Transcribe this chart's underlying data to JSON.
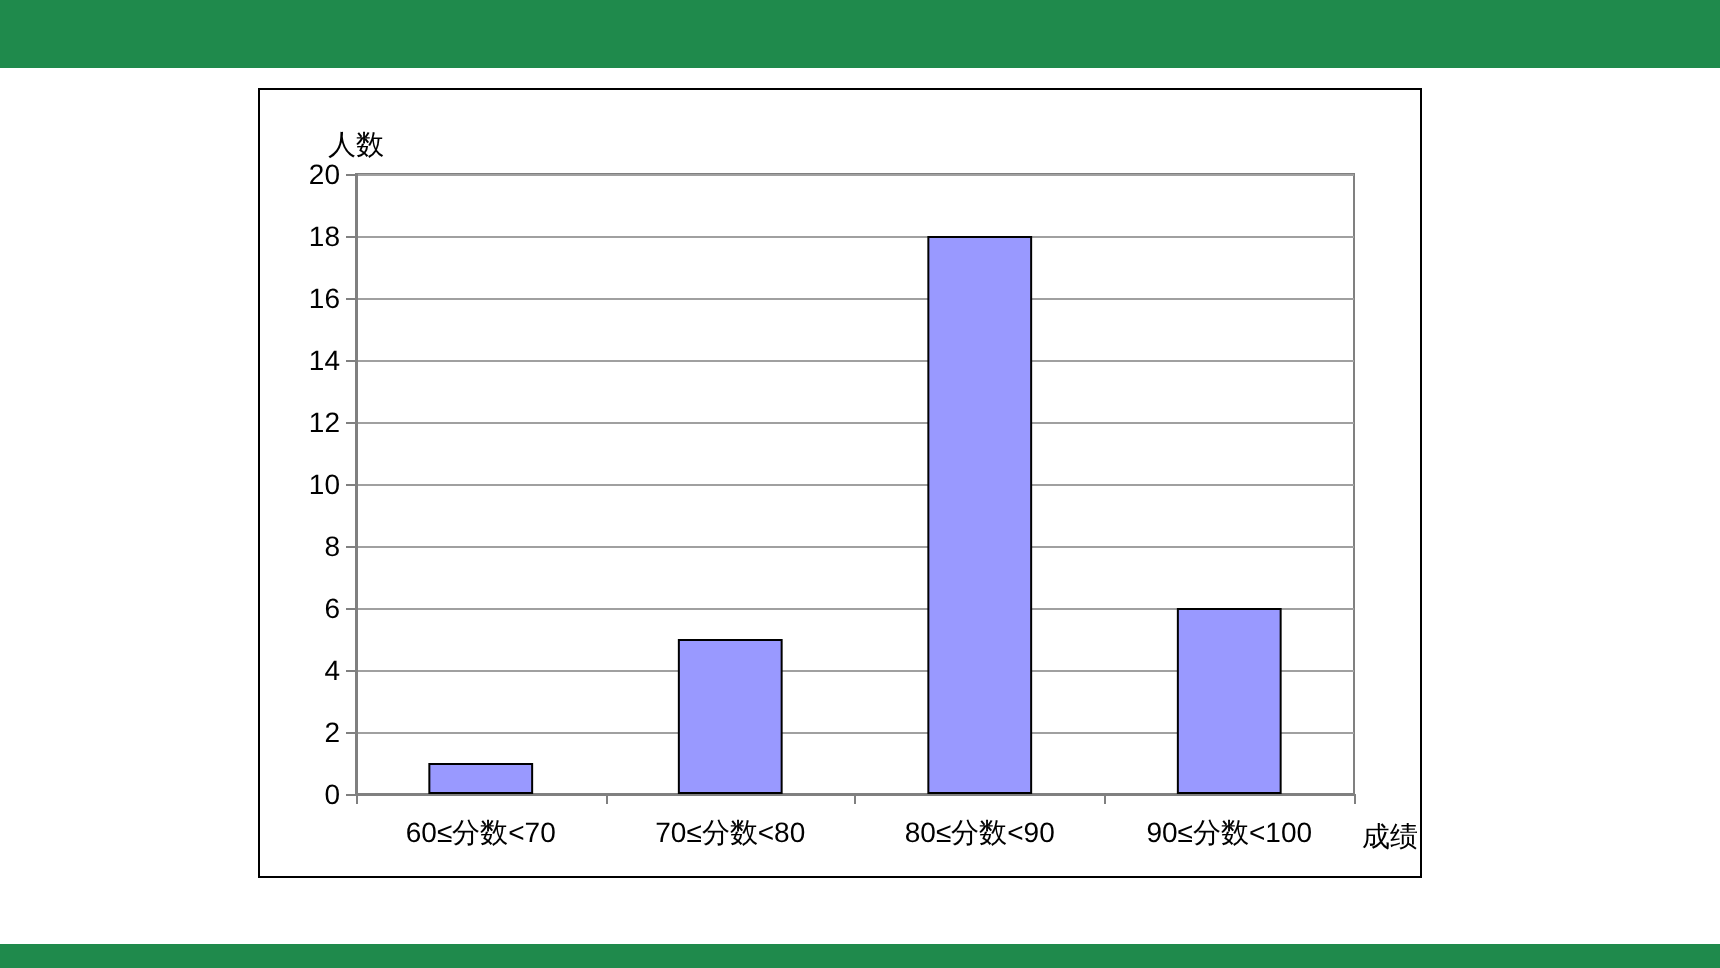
{
  "chart_data": {
    "type": "bar",
    "xlabel": "成绩",
    "ylabel": "人数",
    "categories": [
      "60≤分数<70",
      "70≤分数<80",
      "80≤分数<90",
      "90≤分数<100"
    ],
    "values": [
      1,
      5,
      18,
      6
    ],
    "color": "#9999ff",
    "ylim": [
      0,
      20
    ],
    "yticks": [
      0,
      2,
      4,
      6,
      8,
      10,
      12,
      14,
      16,
      18,
      20
    ],
    "grid": "y"
  }
}
